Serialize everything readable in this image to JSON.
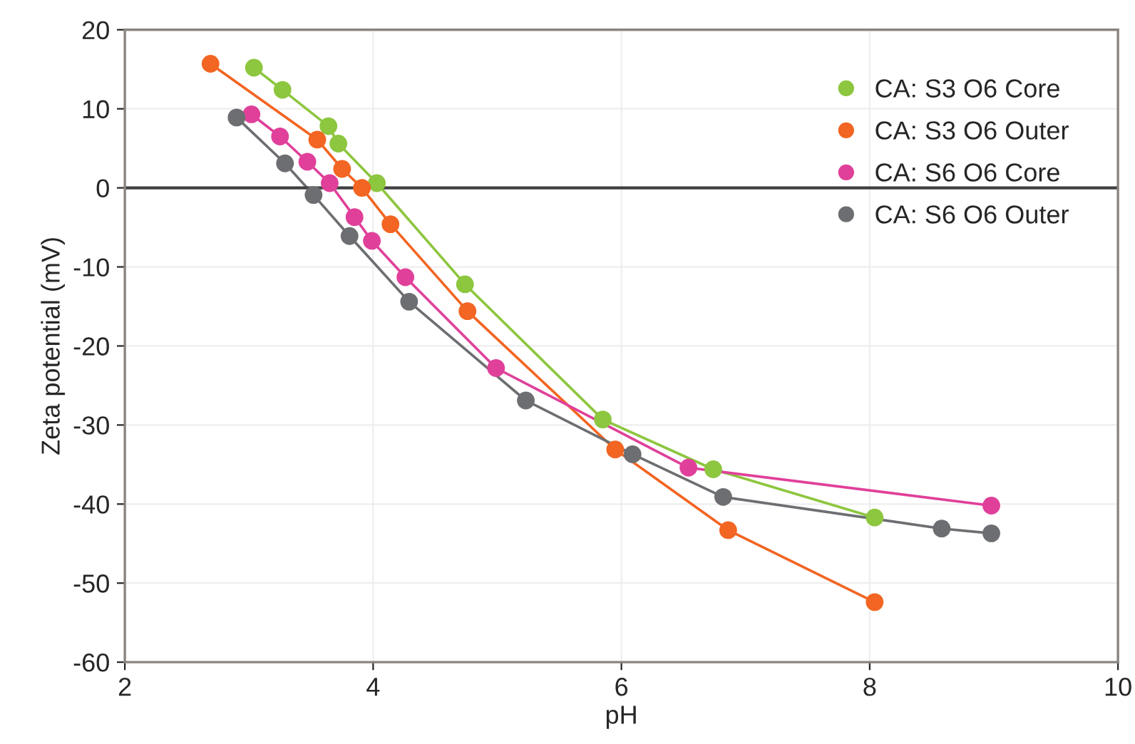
{
  "chart_data": {
    "type": "line",
    "xlabel": "pH",
    "ylabel": "Zeta potential (mV)",
    "xlim": [
      2,
      10
    ],
    "xticks": [
      2,
      4,
      6,
      8,
      10
    ],
    "ylim": [
      -60,
      20
    ],
    "yticks": [
      -60,
      -50,
      -40,
      -30,
      -20,
      -10,
      0,
      10,
      20
    ],
    "grid": true,
    "legend": "top right",
    "marker": "circle",
    "line_style": "solid",
    "ref_lines": [
      {
        "axis": "y",
        "value": 0,
        "color": "#404040"
      }
    ],
    "series": [
      {
        "name": "CA: S3 O6 Core",
        "color": "#8dc63f",
        "x": [
          3.04,
          3.27,
          3.64,
          3.72,
          4.03,
          4.74,
          5.85,
          6.74,
          8.04
        ],
        "values": [
          15.2,
          12.4,
          7.8,
          5.6,
          0.6,
          -12.2,
          -29.3,
          -35.6,
          -41.7
        ]
      },
      {
        "name": "CA: S3 O6 Outer",
        "color": "#f26522",
        "x": [
          2.69,
          3.55,
          3.75,
          3.91,
          4.14,
          4.76,
          5.95,
          6.86,
          8.04
        ],
        "values": [
          15.7,
          6.1,
          2.4,
          0.0,
          -4.6,
          -15.6,
          -33.1,
          -43.3,
          -52.4
        ]
      },
      {
        "name": "CA: S6 O6 Core",
        "color": "#e0409a",
        "x": [
          3.02,
          3.25,
          3.47,
          3.65,
          3.85,
          3.99,
          4.26,
          4.99,
          6.54,
          8.98
        ],
        "values": [
          9.3,
          6.5,
          3.3,
          0.6,
          -3.7,
          -6.7,
          -11.3,
          -22.8,
          -35.4,
          -40.2
        ]
      },
      {
        "name": "CA: S6 O6 Outer",
        "color": "#6d6e71",
        "x": [
          2.9,
          3.29,
          3.52,
          3.81,
          4.29,
          5.23,
          6.09,
          6.82,
          8.58,
          8.98
        ],
        "values": [
          8.9,
          3.1,
          -0.9,
          -6.1,
          -14.4,
          -26.9,
          -33.7,
          -39.1,
          -43.1,
          -43.7
        ]
      }
    ]
  }
}
